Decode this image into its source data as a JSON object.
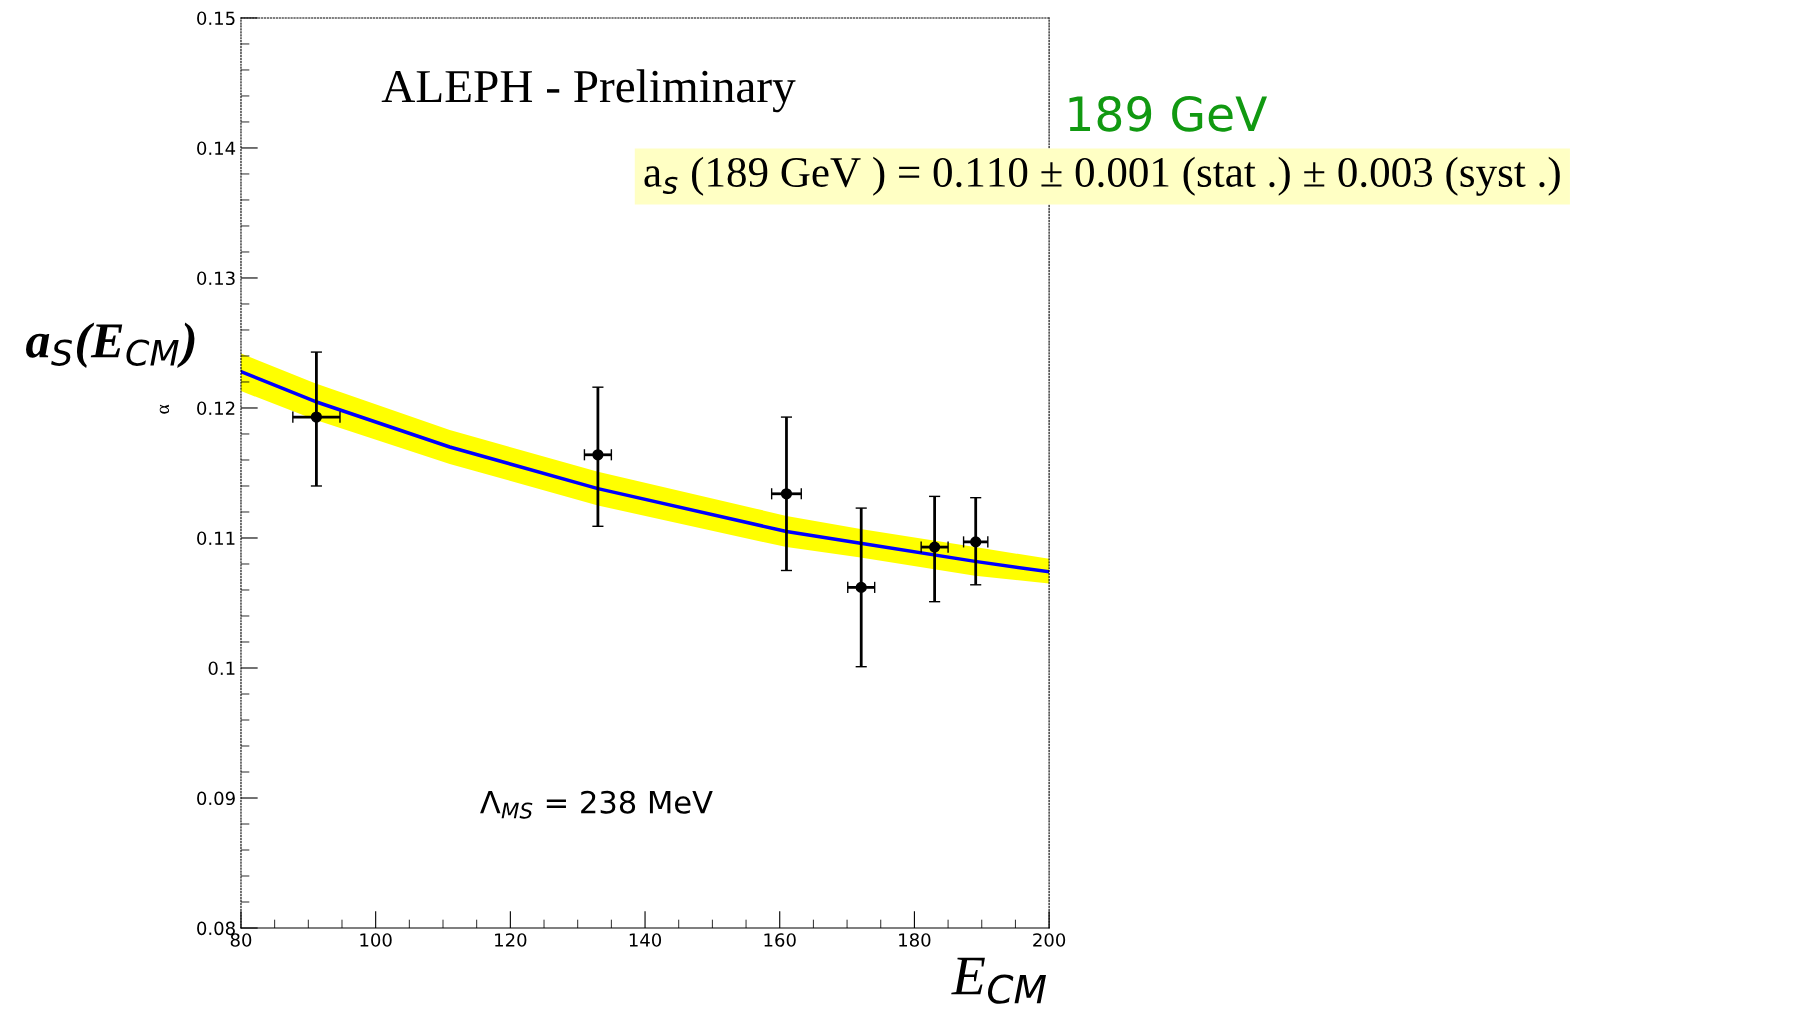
{
  "chart_data": {
    "type": "scatter",
    "xlabel": "E$_{CM}$",
    "ylabel": "a$_{S}$(E$_{CM}$)",
    "xlim": [
      80,
      200
    ],
    "ylim": [
      0.08,
      0.15
    ],
    "xticks": [
      80,
      100,
      120,
      140,
      160,
      180,
      200
    ],
    "yticks": [
      0.08,
      0.09,
      0.1,
      0.11,
      0.12,
      0.13,
      0.14,
      0.15
    ],
    "grid": false,
    "series": [
      {
        "type": "line",
        "color": "#0000ff",
        "x": [
          80,
          91,
          111,
          133,
          161,
          172,
          189,
          200
        ],
        "values": [
          0.1228,
          0.1205,
          0.117,
          0.1138,
          0.1105,
          0.1096,
          0.1082,
          0.1074
        ],
        "upper": [
          0.1242,
          0.1219,
          0.1183,
          0.1151,
          0.1117,
          0.1107,
          0.1093,
          0.1084
        ],
        "lower": [
          0.1213,
          0.1191,
          0.1157,
          0.1125,
          0.1093,
          0.1085,
          0.1071,
          0.1065
        ]
      },
      {
        "marker": "circle",
        "color": "#000000",
        "x": [
          91.2,
          133.0,
          161.0,
          172.1,
          183.0,
          189.1
        ],
        "values": [
          0.1193,
          0.1164,
          0.1134,
          0.1062,
          0.1093,
          0.1097
        ],
        "errors": [
          [
            0.114,
            0.1243
          ],
          [
            0.1109,
            0.1216
          ],
          [
            0.1075,
            0.1193
          ],
          [
            0.1001,
            0.1123
          ],
          [
            0.1051,
            0.1132
          ],
          [
            0.1064,
            0.1131
          ]
        ],
        "xerrors": [
          3.5,
          2.0,
          2.2,
          2.0,
          2.0,
          1.8
        ]
      }
    ],
    "annotations": [
      "ALEPH - Preliminary",
      "Λ$_{MS}$ = 238 MeV",
      "α",
      "189 GeV",
      "a$_{s}$ (189 GeV ) = 0.110 ± 0.001 (stat .) ± 0.003 (syst .)"
    ]
  }
}
